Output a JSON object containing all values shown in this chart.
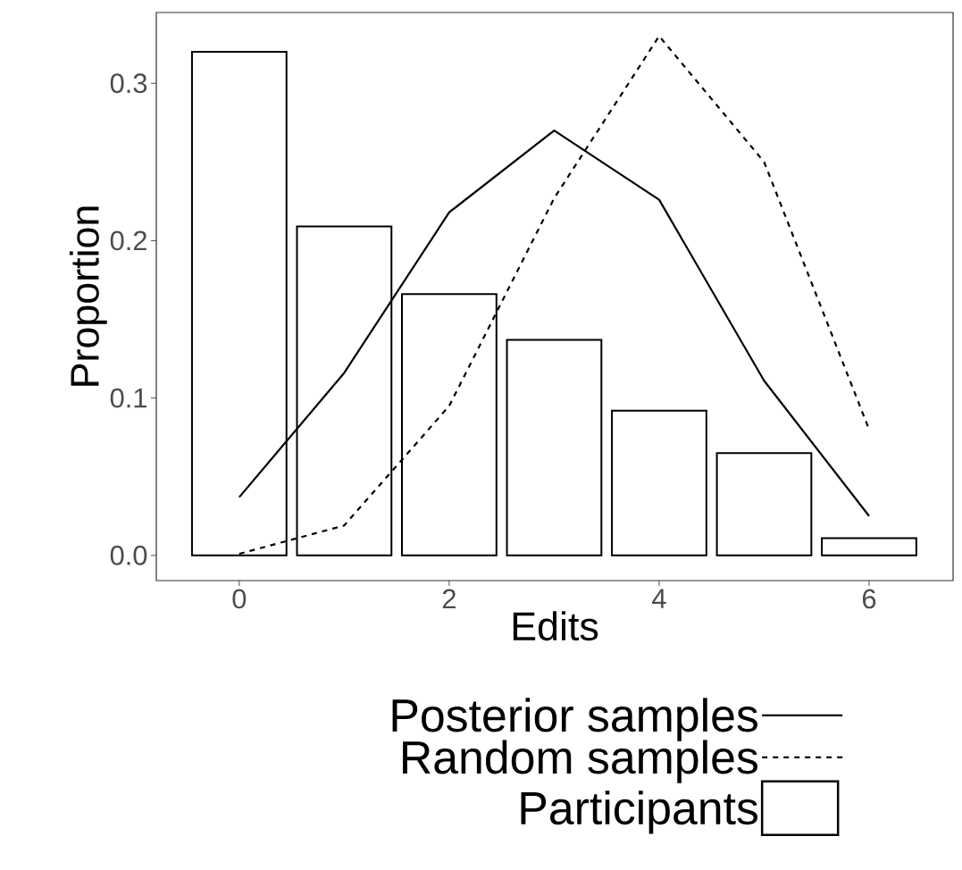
{
  "chart_data": {
    "type": "bar",
    "xlabel": "Edits",
    "ylabel": "Proportion",
    "x": [
      0,
      1,
      2,
      3,
      4,
      5,
      6
    ],
    "series": [
      {
        "name": "Posterior samples",
        "type": "line",
        "line_style": "solid",
        "color": "#000000",
        "values": [
          0.037,
          0.116,
          0.218,
          0.27,
          0.226,
          0.111,
          0.025
        ]
      },
      {
        "name": "Random samples",
        "type": "line",
        "line_style": "dashed",
        "color": "#000000",
        "values": [
          0.001,
          0.019,
          0.095,
          0.227,
          0.33,
          0.25,
          0.08
        ]
      },
      {
        "name": "Participants",
        "color": "#000000",
        "values": [
          0.32,
          0.209,
          0.166,
          0.137,
          0.092,
          0.065,
          0.011
        ]
      }
    ],
    "xlim": [
      -0.79,
      6.8
    ],
    "ylim": [
      -0.016,
      0.345
    ],
    "xticks": [
      0,
      2,
      4,
      6
    ],
    "yticks": [
      {
        "value": 0,
        "label": "0.0"
      },
      {
        "value": 0.1,
        "label": "0.1"
      },
      {
        "value": 0.2,
        "label": "0.2"
      },
      {
        "value": 0.3,
        "label": "0.3"
      }
    ],
    "grid": false,
    "legend": "bottom",
    "marker": "none"
  }
}
